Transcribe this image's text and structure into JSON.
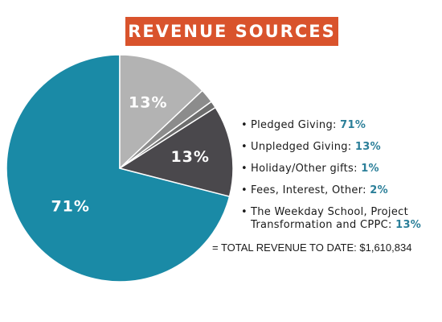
{
  "title": "REVENUE SOURCES",
  "colors": {
    "banner": "#d9532c",
    "pct_text": "#2b7f99"
  },
  "chart_data": {
    "type": "pie",
    "title": "REVENUE SOURCES",
    "series": [
      {
        "name": "Pledged Giving",
        "value": 71,
        "label": "71%",
        "color": "#1a8aa6",
        "show_label": true
      },
      {
        "name": "Unpledged Giving",
        "value": 13,
        "label": "13%",
        "color": "#4a484c",
        "show_label": true
      },
      {
        "name": "Holiday/Other gifts",
        "value": 1,
        "label": "1%",
        "color": "#6e6e6e",
        "show_label": false
      },
      {
        "name": "Fees, Interest, Other",
        "value": 2,
        "label": "2%",
        "color": "#8c8c8c",
        "show_label": false
      },
      {
        "name": "The Weekday School, Project Transformation and CPPC",
        "value": 13,
        "label": "13%",
        "color": "#b3b3b3",
        "show_label": true
      }
    ],
    "legend_position": "right"
  },
  "legend": [
    {
      "bullet": "•",
      "text": "Pledged Giving:",
      "pct": "71%"
    },
    {
      "bullet": "•",
      "text": "Unpledged Giving:",
      "pct": "13%"
    },
    {
      "bullet": "•",
      "text": "Holiday/Other gifts:",
      "pct": "1%"
    },
    {
      "bullet": "•",
      "text": "Fees, Interest, Other:",
      "pct": "2%"
    },
    {
      "bullet": "•",
      "text": "The Weekday School, Project Transformation and CPPC:",
      "pct": "13%"
    }
  ],
  "total": "= TOTAL REVENUE TO DATE: $1,610,834"
}
